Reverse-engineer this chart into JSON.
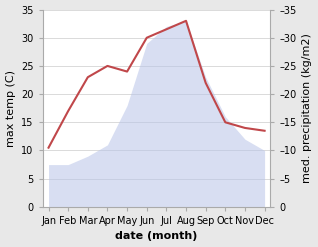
{
  "months": [
    "Jan",
    "Feb",
    "Mar",
    "Apr",
    "May",
    "Jun",
    "Jul",
    "Aug",
    "Sep",
    "Oct",
    "Nov",
    "Dec"
  ],
  "temp": [
    10.5,
    17,
    23,
    25,
    24,
    30,
    31.5,
    33,
    22,
    15,
    14,
    13.5
  ],
  "precip": [
    7.5,
    7.5,
    9,
    11,
    18,
    29,
    32,
    33,
    23,
    16,
    12,
    10
  ],
  "temp_color": "#c0474a",
  "precip_fill_color": "#b8c4e8",
  "ylim": [
    0,
    35
  ],
  "yticks": [
    0,
    5,
    10,
    15,
    20,
    25,
    30,
    35
  ],
  "xlabel": "date (month)",
  "ylabel_left": "max temp (C)",
  "ylabel_right": "med. precipitation (kg/m2)",
  "bg_color": "#e8e8e8",
  "plot_bg_color": "#ffffff",
  "grid_color": "#cccccc",
  "label_fontsize": 8,
  "tick_fontsize": 7,
  "axis_label_fontsize": 8
}
